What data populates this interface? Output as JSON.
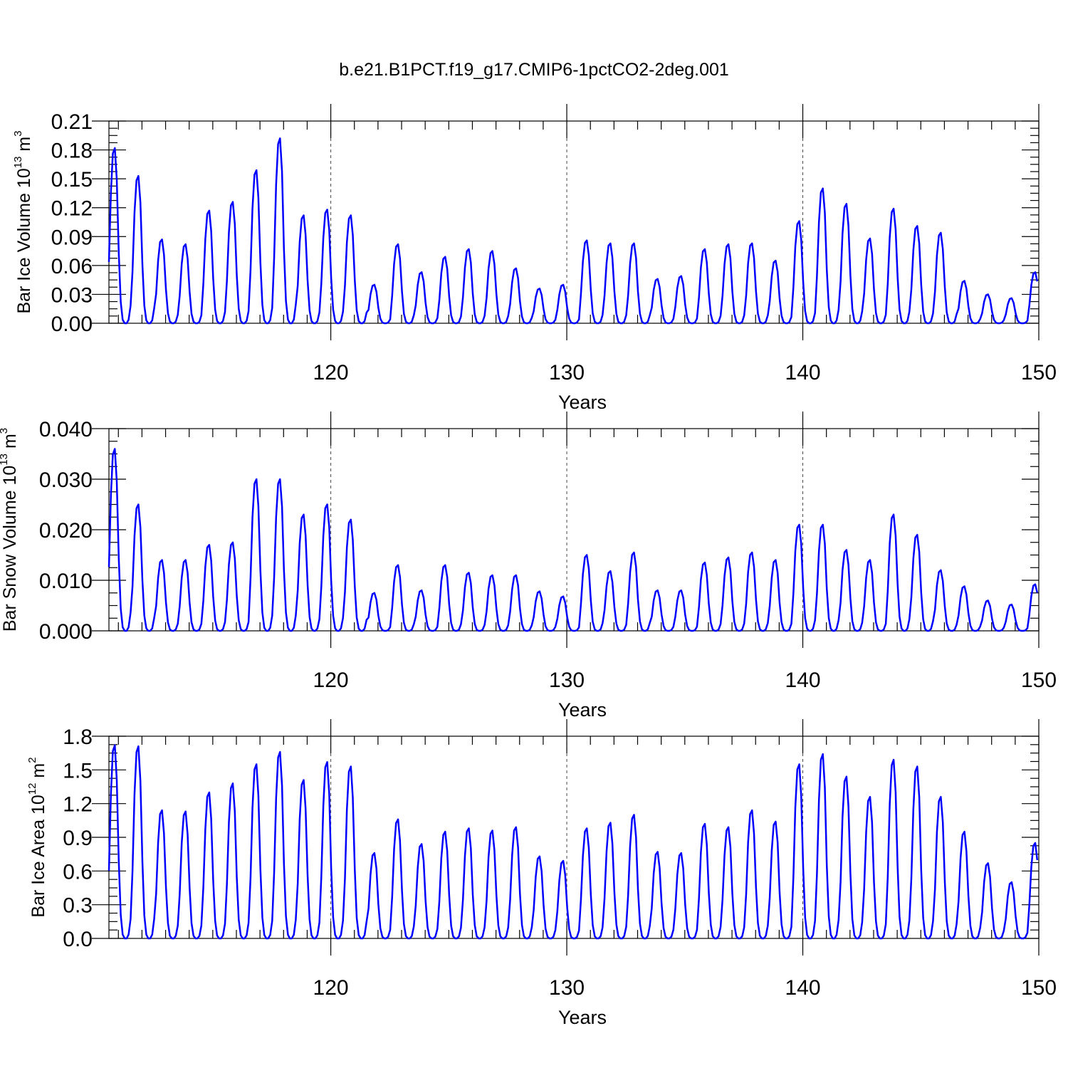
{
  "figure_title": "b.e21.B1PCT.f19_g17.CMIP6-1pctCO2-2deg.001",
  "colors": {
    "line": "#0000ff",
    "axes": "#000000"
  },
  "chart_data": [
    {
      "type": "line",
      "xlabel": "Years",
      "ylabel": {
        "main": "Bar Ice Volume 10",
        "sup": "13",
        "mid": " m",
        "sup2": "3"
      },
      "xlim": [
        110.6,
        150
      ],
      "ylim": [
        0,
        0.21
      ],
      "yticks": [
        0.0,
        0.03,
        0.06,
        0.09,
        0.12,
        0.15,
        0.18,
        0.21
      ],
      "ytick_labels": [
        "0.00",
        "0.03",
        "0.06",
        "0.09",
        "0.12",
        "0.15",
        "0.18",
        "0.21"
      ],
      "xticks": [
        120,
        130,
        140,
        150
      ],
      "xtick_labels": [
        "120",
        "130",
        "140",
        "150"
      ],
      "grid_x": [
        120,
        130,
        140
      ],
      "series": [
        {
          "peaks": [
            0.182,
            0.153,
            0.087,
            0.082,
            0.117,
            0.126,
            0.159,
            0.192,
            0.112,
            0.118,
            0.112,
            0.04,
            0.082,
            0.053,
            0.069,
            0.077,
            0.075,
            0.057,
            0.036,
            0.04,
            0.086,
            0.083,
            0.083,
            0.046,
            0.049,
            0.077,
            0.082,
            0.083,
            0.065,
            0.106,
            0.14,
            0.124,
            0.088,
            0.119,
            0.101,
            0.094,
            0.044,
            0.03,
            0.026,
            0.053
          ]
        }
      ]
    },
    {
      "type": "line",
      "xlabel": "Years",
      "ylabel": {
        "main": "Bar Snow Volume 10",
        "sup": "13",
        "mid": " m",
        "sup2": "3"
      },
      "xlim": [
        110.6,
        150
      ],
      "ylim": [
        0,
        0.04
      ],
      "yticks": [
        0.0,
        0.01,
        0.02,
        0.03,
        0.04
      ],
      "ytick_labels": [
        "0.000",
        "0.010",
        "0.020",
        "0.030",
        "0.040"
      ],
      "xticks": [
        120,
        130,
        140,
        150
      ],
      "xtick_labels": [
        "120",
        "130",
        "140",
        "150"
      ],
      "grid_x": [
        120,
        130,
        140
      ],
      "series": [
        {
          "peaks": [
            0.036,
            0.025,
            0.014,
            0.014,
            0.017,
            0.0175,
            0.03,
            0.03,
            0.023,
            0.025,
            0.022,
            0.0075,
            0.013,
            0.008,
            0.013,
            0.0115,
            0.011,
            0.011,
            0.0078,
            0.0068,
            0.015,
            0.0118,
            0.0155,
            0.008,
            0.008,
            0.0135,
            0.0145,
            0.0155,
            0.014,
            0.021,
            0.021,
            0.016,
            0.014,
            0.023,
            0.019,
            0.012,
            0.0088,
            0.006,
            0.0052,
            0.0092
          ]
        }
      ]
    },
    {
      "type": "line",
      "xlabel": "Years",
      "ylabel": {
        "main": "Bar Ice Area 10",
        "sup": "12",
        "mid": " m",
        "sup2": "2"
      },
      "xlim": [
        110.6,
        150
      ],
      "ylim": [
        0,
        1.8
      ],
      "yticks": [
        0.0,
        0.3,
        0.6,
        0.9,
        1.2,
        1.5,
        1.8
      ],
      "ytick_labels": [
        "0.0",
        "0.3",
        "0.6",
        "0.9",
        "1.2",
        "1.5",
        "1.8"
      ],
      "xticks": [
        120,
        130,
        140,
        150
      ],
      "xtick_labels": [
        "120",
        "130",
        "140",
        "150"
      ],
      "grid_x": [
        120,
        130,
        140
      ],
      "series": [
        {
          "peaks": [
            1.72,
            1.71,
            1.14,
            1.13,
            1.3,
            1.38,
            1.55,
            1.66,
            1.41,
            1.57,
            1.53,
            0.76,
            1.06,
            0.84,
            0.95,
            0.98,
            0.96,
            0.99,
            0.73,
            0.69,
            0.98,
            1.03,
            1.1,
            0.77,
            0.76,
            1.02,
            0.99,
            1.14,
            1.04,
            1.55,
            1.64,
            1.44,
            1.26,
            1.59,
            1.53,
            1.26,
            0.95,
            0.67,
            0.5,
            0.85
          ]
        }
      ]
    }
  ]
}
